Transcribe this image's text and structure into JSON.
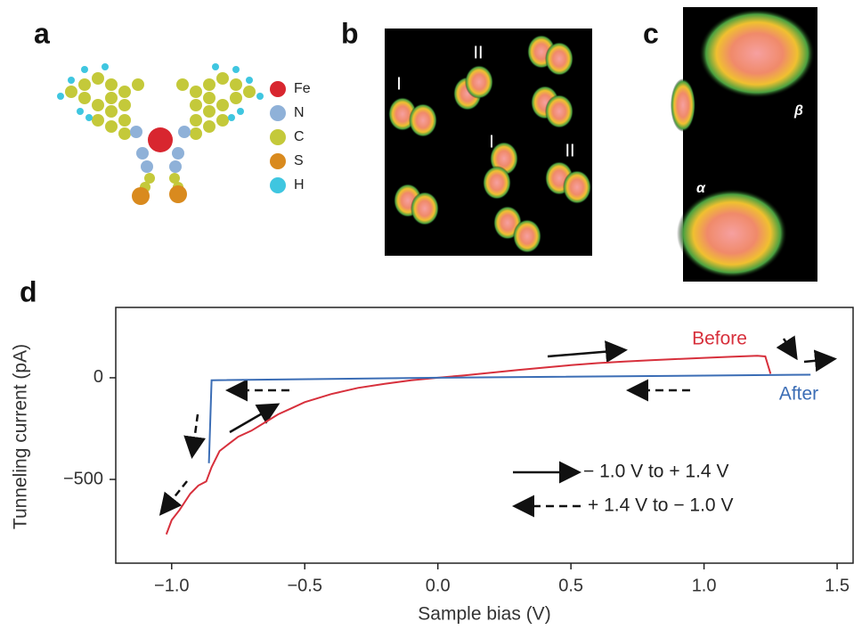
{
  "panels": {
    "a": "a",
    "b": "b",
    "c": "c",
    "d": "d"
  },
  "atoms": [
    {
      "name": "Fe",
      "color": "#d8262f"
    },
    {
      "name": "N",
      "color": "#8fb1d8"
    },
    {
      "name": "C",
      "color": "#c4c93a"
    },
    {
      "name": "S",
      "color": "#d98a1e"
    },
    {
      "name": "H",
      "color": "#3fc6e0"
    }
  ],
  "image_b_labels": [
    "I",
    "II",
    "I",
    "II"
  ],
  "image_c_labels": [
    "β",
    "α"
  ],
  "chart_data": {
    "type": "line",
    "xlabel": "Sample bias (V)",
    "ylabel": "Tunneling current (pA)",
    "xlim": [
      -1.21,
      1.56
    ],
    "ylim": [
      -912,
      346
    ],
    "xticks": [
      {
        "value": -1.0,
        "label": "−1.0"
      },
      {
        "value": -0.5,
        "label": "−0.5"
      },
      {
        "value": 0.0,
        "label": "0.0"
      },
      0.5,
      {
        "value": 1.0,
        "label": "1.0"
      },
      1.5
    ],
    "yticks": [
      {
        "value": -500,
        "label": "−500"
      },
      0
    ],
    "grid": false,
    "series": [
      {
        "name": "Before",
        "color": "#d7303c",
        "x": [
          -1.02,
          -1.0,
          -0.97,
          -0.93,
          -0.9,
          -0.87,
          -0.85,
          -0.82,
          -0.78,
          -0.75,
          -0.7,
          -0.65,
          -0.6,
          -0.55,
          -0.5,
          -0.4,
          -0.3,
          -0.2,
          -0.1,
          0.0,
          0.1,
          0.2,
          0.3,
          0.4,
          0.5,
          0.6,
          0.7,
          0.8,
          0.9,
          1.0,
          1.1,
          1.2,
          1.23,
          1.25
        ],
        "values": [
          -770,
          -700,
          -650,
          -570,
          -530,
          -510,
          -440,
          -360,
          -320,
          -290,
          -260,
          -220,
          -180,
          -150,
          -120,
          -80,
          -50,
          -30,
          -12,
          0,
          12,
          25,
          38,
          50,
          62,
          72,
          80,
          86,
          92,
          98,
          103,
          108,
          105,
          20
        ]
      },
      {
        "name": "After",
        "color": "#3b6db5",
        "x": [
          1.4,
          0.0,
          -0.85,
          -0.86
        ],
        "values": [
          15,
          0,
          -12,
          -420
        ]
      }
    ],
    "annotations": [
      "− 1.0 V to + 1.4 V",
      "+ 1.4 V to − 1.0 V"
    ]
  }
}
